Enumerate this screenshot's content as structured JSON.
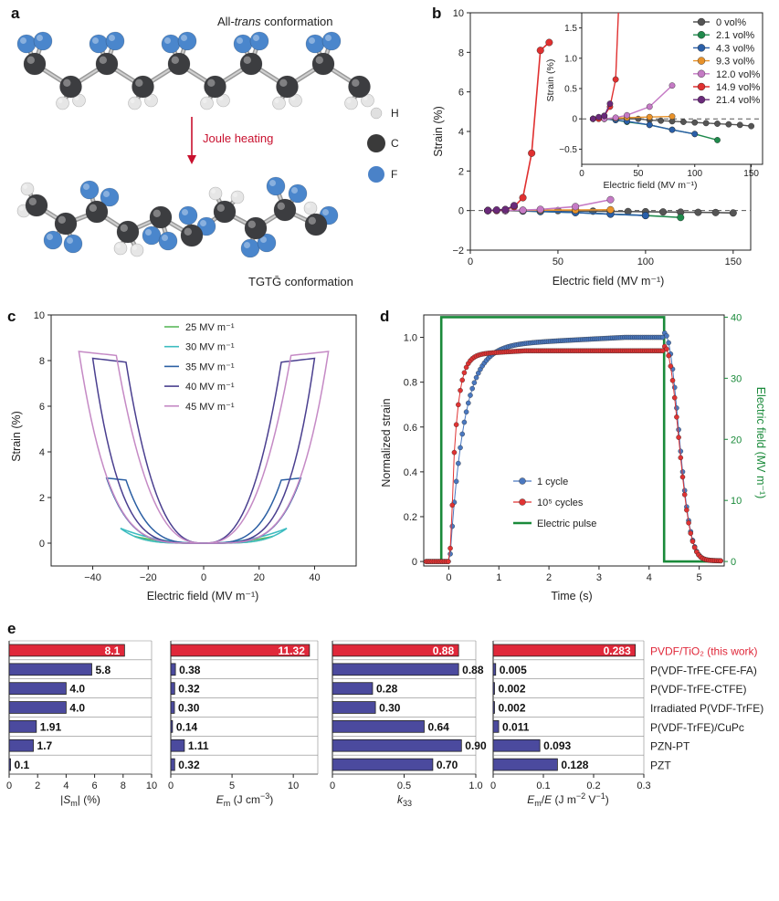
{
  "panel_a": {
    "label": "a",
    "title_prefix": "All-",
    "title_italic": "trans",
    "title_suffix": " conformation",
    "arrow_label": "Joule heating",
    "bottom_label": "TGTḠ conformation",
    "legend": [
      {
        "label": "H",
        "color": "#e8e8e8"
      },
      {
        "label": "C",
        "color": "#3a3a3a"
      },
      {
        "label": "F",
        "color": "#4a82c8"
      }
    ]
  },
  "chart_data": [
    {
      "id": "b",
      "type": "line",
      "label": "b",
      "xlabel": "Electric field (MV m⁻¹)",
      "ylabel": "Strain (%)",
      "xlim": [
        0,
        160
      ],
      "ylim": [
        -2,
        10
      ],
      "xticks": [
        0,
        50,
        100,
        150
      ],
      "yticks": [
        -2,
        0,
        2,
        4,
        6,
        8,
        10
      ],
      "series": [
        {
          "name": "0 vol%",
          "color": "#555555",
          "x": [
            10,
            20,
            30,
            40,
            50,
            60,
            70,
            80,
            90,
            100,
            110,
            120,
            130,
            140,
            150
          ],
          "y": [
            0,
            0,
            0,
            0,
            0,
            -0.02,
            -0.03,
            -0.04,
            -0.05,
            -0.06,
            -0.07,
            -0.08,
            -0.09,
            -0.1,
            -0.12
          ]
        },
        {
          "name": "2.1 vol%",
          "color": "#1f8a4c",
          "x": [
            10,
            20,
            30,
            40,
            60,
            80,
            100,
            120
          ],
          "y": [
            0,
            0,
            -0.02,
            -0.05,
            -0.1,
            -0.18,
            -0.25,
            -0.35
          ]
        },
        {
          "name": "4.3 vol%",
          "color": "#2a5fa8",
          "x": [
            10,
            20,
            30,
            40,
            60,
            80,
            100
          ],
          "y": [
            0,
            0,
            -0.02,
            -0.04,
            -0.1,
            -0.18,
            -0.25
          ]
        },
        {
          "name": "9.3 vol%",
          "color": "#e8922a",
          "x": [
            10,
            20,
            30,
            40,
            60,
            80
          ],
          "y": [
            0,
            0,
            0.01,
            0.02,
            0.03,
            0.04
          ]
        },
        {
          "name": "12.0 vol%",
          "color": "#c57ac5",
          "x": [
            10,
            20,
            30,
            40,
            60,
            80
          ],
          "y": [
            0,
            0,
            0.02,
            0.06,
            0.2,
            0.55
          ]
        },
        {
          "name": "14.9 vol%",
          "color": "#e03030",
          "x": [
            10,
            15,
            20,
            25,
            30,
            35,
            40,
            45
          ],
          "y": [
            0,
            0,
            0.05,
            0.2,
            0.65,
            2.9,
            8.1,
            8.5
          ]
        },
        {
          "name": "21.4 vol%",
          "color": "#6a2a7a",
          "x": [
            10,
            15,
            20,
            25
          ],
          "y": [
            0,
            0.03,
            0.05,
            0.25
          ]
        }
      ],
      "inset": {
        "xlabel": "Electric field (MV m⁻¹)",
        "ylabel": "Strain (%)",
        "xlim": [
          0,
          160
        ],
        "ylim": [
          -0.75,
          1.75
        ],
        "xticks": [
          0,
          50,
          100,
          150
        ],
        "yticks": [
          -0.5,
          0,
          0.5,
          1.0,
          1.5
        ],
        "ytick_labels": [
          "−0.5",
          "0",
          "0.5",
          "1.0",
          "1.5"
        ]
      }
    },
    {
      "id": "c",
      "type": "line",
      "label": "c",
      "xlabel": "Electric field (MV m⁻¹)",
      "ylabel": "Strain (%)",
      "xlim": [
        -55,
        55
      ],
      "ylim": [
        -1,
        10
      ],
      "xticks": [
        -40,
        -20,
        0,
        20,
        40
      ],
      "xtick_labels": [
        "−40",
        "−20",
        "0",
        "20",
        "40"
      ],
      "yticks": [
        0,
        2,
        4,
        6,
        8,
        10
      ],
      "series": [
        {
          "name": "25 MV m⁻¹",
          "color": "#5cb85c",
          "max_field": 25,
          "peak_strain": 0.3
        },
        {
          "name": "30 MV m⁻¹",
          "color": "#3cbcc0",
          "max_field": 30,
          "peak_strain": 0.65
        },
        {
          "name": "35 MV m⁻¹",
          "color": "#2b5fa3",
          "max_field": 35,
          "peak_strain": 2.85
        },
        {
          "name": "40 MV m⁻¹",
          "color": "#4a3f8f",
          "max_field": 40,
          "peak_strain": 8.1
        },
        {
          "name": "45 MV m⁻¹",
          "color": "#c58ac5",
          "max_field": 45,
          "peak_strain": 8.4
        }
      ]
    },
    {
      "id": "d",
      "type": "line",
      "label": "d",
      "xlabel": "Time (s)",
      "ylabel": "Normalized  strain",
      "ylabel2": "Electric field (MV m⁻¹)",
      "xlim": [
        -0.5,
        5.5
      ],
      "ylim": [
        -0.02,
        1.1
      ],
      "y2lim": [
        0,
        40
      ],
      "xticks": [
        0,
        1,
        2,
        3,
        4,
        5
      ],
      "yticks": [
        0,
        0.2,
        0.4,
        0.6,
        0.8,
        1.0
      ],
      "ytick_labels": [
        "0",
        "0.2",
        "0.4",
        "0.6",
        "0.8",
        "1.0"
      ],
      "y2ticks": [
        0,
        10,
        20,
        30,
        40
      ],
      "series": [
        {
          "name": "1 cycle",
          "color": "#4a78c0",
          "final": 1.0,
          "tau": 0.28
        },
        {
          "name": "10⁵ cycles",
          "color": "#e03333",
          "final": 0.94,
          "tau": 0.12
        },
        {
          "name": "Electric pulse",
          "color": "#1a8a3a",
          "on": -0.15,
          "off": 4.3,
          "level": 40
        }
      ]
    },
    {
      "id": "e1",
      "type": "bar",
      "label": "e",
      "xlabel": "|S_m| (%)",
      "xlim": [
        0,
        10
      ],
      "xticks": [
        0,
        2,
        4,
        6,
        8,
        10
      ],
      "values": [
        8.1,
        5.8,
        4.0,
        4.0,
        1.91,
        1.7,
        0.1
      ],
      "value_labels": [
        "8.1",
        "5.8",
        "4.0",
        "4.0",
        "1.91",
        "1.7",
        "0.1"
      ]
    },
    {
      "id": "e2",
      "type": "bar",
      "xlabel": "E_m (J cm⁻³)",
      "xlim": [
        0,
        12
      ],
      "xticks": [
        0,
        5,
        10
      ],
      "values": [
        11.32,
        0.38,
        0.32,
        0.3,
        0.14,
        1.11,
        0.32
      ],
      "value_labels": [
        "11.32",
        "0.38",
        "0.32",
        "0.30",
        "0.14",
        "1.11",
        "0.32"
      ]
    },
    {
      "id": "e3",
      "type": "bar",
      "xlabel": "k33",
      "xlim": [
        0,
        1.0
      ],
      "xticks": [
        0,
        0.5,
        1.0
      ],
      "xtick_labels": [
        "0",
        "0.5",
        "1.0"
      ],
      "values": [
        0.88,
        0.88,
        0.28,
        0.3,
        0.64,
        0.9,
        0.7
      ],
      "value_labels": [
        "0.88",
        "0.88",
        "0.28",
        "0.30",
        "0.64",
        "0.90",
        "0.70"
      ]
    },
    {
      "id": "e4",
      "type": "bar",
      "xlabel": "E_m/E (J m⁻² V⁻¹)",
      "xlim": [
        0,
        0.3
      ],
      "xticks": [
        0,
        0.1,
        0.2,
        0.3
      ],
      "xtick_labels": [
        "0",
        "0.1",
        "0.2",
        "0.3"
      ],
      "values": [
        0.283,
        0.005,
        0.002,
        0.002,
        0.011,
        0.093,
        0.128
      ],
      "value_labels": [
        "0.283",
        "0.005",
        "0.002",
        "0.002",
        "0.011",
        "0.093",
        "0.128"
      ]
    }
  ],
  "panel_e": {
    "categories": [
      "PVDF/TiO₂ (this work)",
      "P(VDF-TrFE-CFE-FA)",
      "P(VDF-TrFE-CTFE)",
      "Irradiated P(VDF-TrFE)",
      "P(VDF-TrFE)/CuPc",
      "PZN-PT",
      "PZT"
    ],
    "highlight_color": "#e0283a",
    "bar_color": "#4b4a9e"
  }
}
